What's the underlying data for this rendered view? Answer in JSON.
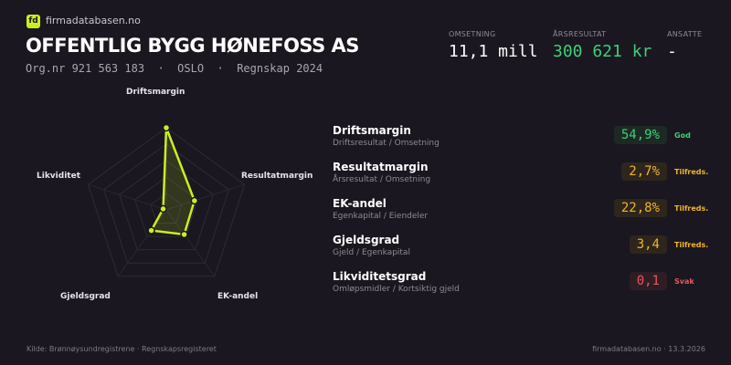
{
  "brand": {
    "logo": "fd",
    "name": "firmadatabasen.no"
  },
  "company": {
    "name": "OFFENTLIG BYGG HØNEFOSS AS",
    "subtitle": "Org.nr 921 563 183  ·  OSLO  ·  Regnskap 2024"
  },
  "kpis": [
    {
      "label": "OMSETNING",
      "value": "11,1 mill",
      "color": "#ffffff"
    },
    {
      "label": "ÅRSRESULTAT",
      "value": "300 621 kr",
      "color": "#3ecf75"
    },
    {
      "label": "ANSATTE",
      "value": "-",
      "color": "#ffffff"
    }
  ],
  "chart_data": {
    "type": "radar",
    "axes": [
      "Driftsmargin",
      "Resultatmargin",
      "EK-andel",
      "Gjeldsgrad",
      "Likviditet"
    ],
    "values": [
      1.0,
      0.36,
      0.37,
      0.31,
      0.04
    ],
    "range": [
      0,
      1
    ],
    "grid_levels": 5,
    "color": "#c8f01e"
  },
  "metrics": [
    {
      "name": "Driftsmargin",
      "formula": "Driftsresultat / Omsetning",
      "value": "54,9%",
      "status": "God",
      "color": "#3ecf75",
      "bg": "#1d2a24"
    },
    {
      "name": "Resultatmargin",
      "formula": "Årsresultat / Omsetning",
      "value": "2,7%",
      "status": "Tilfreds.",
      "color": "#f0b429",
      "bg": "#2e261c"
    },
    {
      "name": "EK-andel",
      "formula": "Egenkapital / Eiendeler",
      "value": "22,8%",
      "status": "Tilfreds.",
      "color": "#f0b429",
      "bg": "#2e261c"
    },
    {
      "name": "Gjeldsgrad",
      "formula": "Gjeld / Egenkapital",
      "value": "3,4",
      "status": "Tilfreds.",
      "color": "#f0b429",
      "bg": "#2e261c"
    },
    {
      "name": "Likviditetsgrad",
      "formula": "Omløpsmidler / Kortsiktig gjeld",
      "value": "0,1",
      "status": "Svak",
      "color": "#e5575f",
      "bg": "#2e1e24"
    }
  ],
  "footer": {
    "source": "Kilde: Brønnøysundregistrene · Regnskapsregisteret",
    "site": "firmadatabasen.no · 13.3.2026"
  }
}
